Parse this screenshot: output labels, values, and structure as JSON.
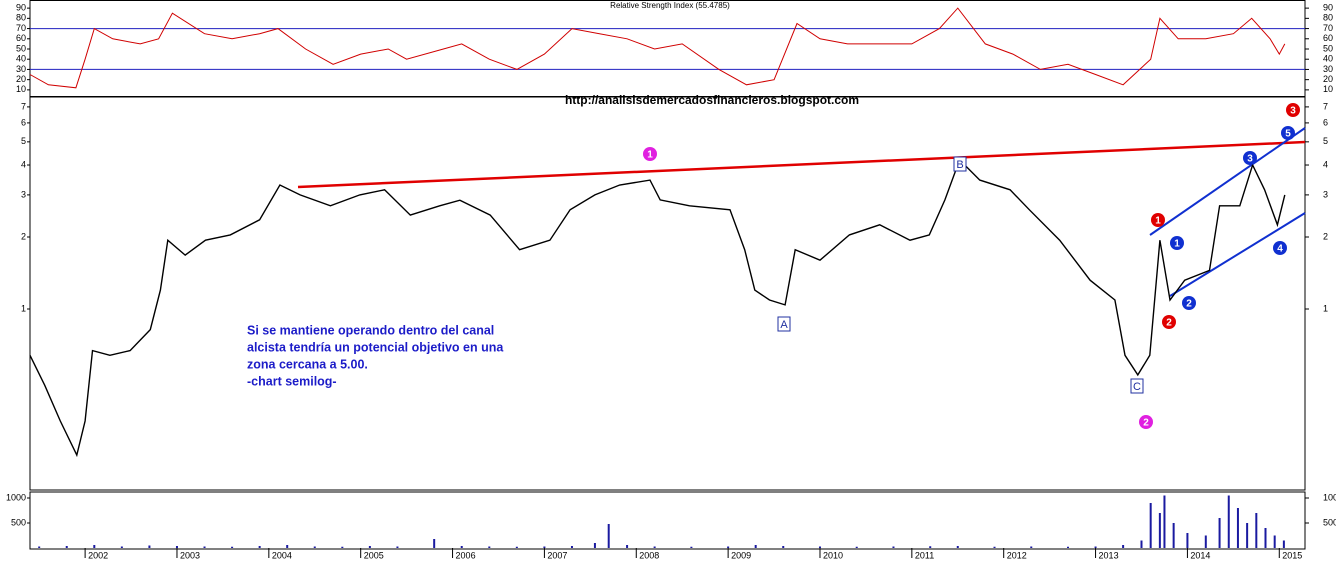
{
  "chart_data": [
    {
      "type": "line",
      "title": "Relative Strength Index (55.4785)",
      "color": "#d00000",
      "x": [
        2001.4,
        2001.6,
        2001.9,
        2002.0,
        2002.1,
        2002.3,
        2002.6,
        2002.8,
        2002.95,
        2003.3,
        2003.6,
        2003.9,
        2004.1,
        2004.4,
        2004.7,
        2005.0,
        2005.3,
        2005.5,
        2005.9,
        2006.1,
        2006.4,
        2006.7,
        2007.0,
        2007.3,
        2007.6,
        2007.9,
        2008.2,
        2008.5,
        2008.9,
        2009.2,
        2009.5,
        2009.75,
        2010.0,
        2010.3,
        2010.7,
        2011.0,
        2011.3,
        2011.5,
        2011.8,
        2012.1,
        2012.4,
        2012.7,
        2013.0,
        2013.3,
        2013.6,
        2013.7,
        2013.9,
        2014.2,
        2014.5,
        2014.7,
        2014.9,
        2015.0,
        2015.06
      ],
      "values": [
        25,
        15,
        12,
        40,
        70,
        60,
        55,
        60,
        85,
        65,
        60,
        65,
        70,
        50,
        35,
        45,
        50,
        40,
        50,
        55,
        40,
        30,
        45,
        70,
        65,
        60,
        50,
        55,
        30,
        15,
        20,
        75,
        60,
        55,
        55,
        55,
        70,
        90,
        55,
        45,
        30,
        35,
        25,
        15,
        40,
        80,
        60,
        60,
        65,
        80,
        60,
        45,
        55
      ],
      "xlim": [
        2001.4,
        2015.28
      ],
      "ylim": [
        4,
        96
      ],
      "yticks": [
        10,
        20,
        30,
        40,
        50,
        60,
        70,
        80,
        90
      ],
      "hlines": [
        30,
        70
      ],
      "hline_color": "#2020c0"
    },
    {
      "type": "line",
      "log_scale": true,
      "color": "#000000",
      "x": [
        2001.4,
        2001.56,
        2001.73,
        2001.91,
        2002.0,
        2002.08,
        2002.27,
        2002.49,
        2002.71,
        2002.82,
        2002.9,
        2003.09,
        2003.31,
        2003.58,
        2003.9,
        2004.12,
        2004.34,
        2004.67,
        2004.99,
        2005.26,
        2005.54,
        2005.86,
        2006.08,
        2006.41,
        2006.73,
        2007.06,
        2007.28,
        2007.55,
        2007.82,
        2008.15,
        2008.26,
        2008.58,
        2009.02,
        2009.18,
        2009.29,
        2009.45,
        2009.62,
        2009.73,
        2010.0,
        2010.32,
        2010.65,
        2010.98,
        2011.19,
        2011.36,
        2011.52,
        2011.74,
        2012.07,
        2012.28,
        2012.61,
        2012.94,
        2013.21,
        2013.32,
        2013.46,
        2013.59,
        2013.7,
        2013.81,
        2013.97,
        2014.24,
        2014.35,
        2014.57,
        2014.71,
        2014.84,
        2014.98,
        2015.06
      ],
      "values": [
        0.64,
        0.48,
        0.34,
        0.245,
        0.34,
        0.67,
        0.64,
        0.67,
        0.82,
        1.2,
        1.94,
        1.68,
        1.94,
        2.04,
        2.36,
        3.3,
        3.0,
        2.7,
        3.0,
        3.15,
        2.47,
        2.7,
        2.85,
        2.47,
        1.77,
        1.94,
        2.6,
        3.0,
        3.3,
        3.46,
        2.86,
        2.7,
        2.6,
        1.77,
        1.2,
        1.09,
        1.04,
        1.77,
        1.6,
        2.04,
        2.25,
        1.94,
        2.04,
        2.86,
        4.2,
        3.46,
        3.15,
        2.6,
        1.94,
        1.32,
        1.09,
        0.64,
        0.53,
        0.64,
        1.94,
        1.09,
        1.32,
        1.45,
        2.7,
        2.7,
        4.0,
        3.15,
        2.25,
        3.0
      ],
      "xlim": [
        2001.4,
        2015.28
      ],
      "ylim": [
        0.175,
        7.7
      ],
      "yticks": [
        1,
        2,
        3,
        4,
        5,
        6,
        7
      ],
      "url": "http://analisisdemercadosfinancieros.blogspot.com",
      "note": [
        "Si se mantiene operando dentro del canal",
        "alcista tendría un potencial objetivo en una",
        "zona cercana a 5.00.",
        "-chart semilog-"
      ],
      "wave_labels": [
        {
          "text": "1",
          "color": "#e020e0",
          "shape": "circle"
        },
        {
          "text": "2",
          "color": "#e020e0",
          "shape": "circle"
        },
        {
          "text": "1",
          "color": "#e00000",
          "shape": "circle"
        },
        {
          "text": "2",
          "color": "#e00000",
          "shape": "circle"
        },
        {
          "text": "3",
          "color": "#e00000",
          "shape": "circle"
        },
        {
          "text": "1",
          "color": "#1030d0",
          "shape": "circle"
        },
        {
          "text": "2",
          "color": "#1030d0",
          "shape": "circle"
        },
        {
          "text": "3",
          "color": "#1030d0",
          "shape": "circle"
        },
        {
          "text": "4",
          "color": "#1030d0",
          "shape": "circle"
        },
        {
          "text": "5",
          "color": "#1030d0",
          "shape": "circle"
        },
        {
          "text": "A",
          "color": "#2030a0",
          "shape": "square"
        },
        {
          "text": "B",
          "color": "#2030a0",
          "shape": "square"
        },
        {
          "text": "C",
          "color": "#2030a0",
          "shape": "square"
        }
      ]
    },
    {
      "type": "bar",
      "color": "#1a1aa0",
      "x": [
        2001.5,
        2001.8,
        2002.1,
        2002.4,
        2002.7,
        2003.0,
        2003.3,
        2003.6,
        2003.9,
        2004.2,
        2004.5,
        2004.8,
        2005.1,
        2005.4,
        2005.8,
        2006.1,
        2006.4,
        2006.7,
        2007.0,
        2007.3,
        2007.55,
        2007.7,
        2007.9,
        2008.2,
        2008.6,
        2009.0,
        2009.3,
        2009.6,
        2010.0,
        2010.4,
        2010.8,
        2011.2,
        2011.5,
        2011.9,
        2012.3,
        2012.7,
        2013.0,
        2013.3,
        2013.5,
        2013.6,
        2013.7,
        2013.75,
        2013.85,
        2014.0,
        2014.2,
        2014.35,
        2014.45,
        2014.55,
        2014.65,
        2014.75,
        2014.85,
        2014.95,
        2015.05
      ],
      "values": [
        30,
        40,
        60,
        30,
        50,
        40,
        30,
        25,
        40,
        60,
        30,
        25,
        40,
        30,
        180,
        40,
        30,
        25,
        30,
        40,
        100,
        480,
        60,
        30,
        25,
        30,
        60,
        40,
        30,
        25,
        30,
        35,
        40,
        25,
        30,
        25,
        30,
        60,
        150,
        900,
        700,
        1050,
        500,
        300,
        250,
        600,
        1050,
        800,
        500,
        700,
        400,
        250,
        150
      ],
      "xlim": [
        2001.4,
        2015.28
      ],
      "ylim": [
        0,
        1120
      ],
      "yticks": [
        500,
        1000
      ],
      "xticks": [
        2002,
        2003,
        2004,
        2005,
        2006,
        2007,
        2008,
        2009,
        2010,
        2011,
        2012,
        2013,
        2014,
        2015
      ]
    }
  ]
}
